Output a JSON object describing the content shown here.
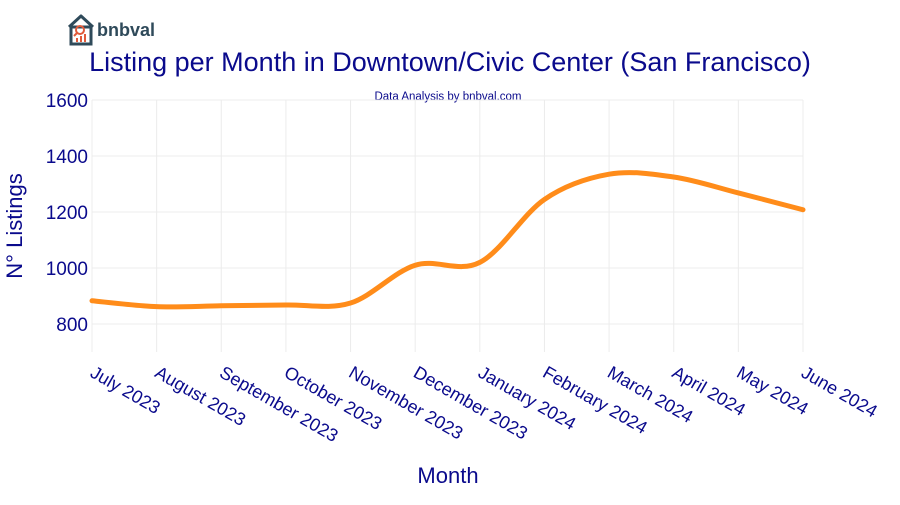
{
  "brand": {
    "name": "bnbval",
    "logo_icon": "house-search-chart-icon",
    "logo_color": "#2f4a5a",
    "accent_color": "#e05a3a"
  },
  "colors": {
    "title": "#0a0a8c",
    "line": "#ff8c1a",
    "grid": "#ececec",
    "background": "#ffffff"
  },
  "chart_data": {
    "type": "line",
    "title": "Listing per Month in Downtown/Civic Center (San Francisco)",
    "subtitle": "Data Analysis by bnbval.com",
    "xlabel": "Month",
    "ylabel": "N° Listings",
    "categories": [
      "July 2023",
      "August 2023",
      "September 2023",
      "October 2023",
      "November 2023",
      "December 2023",
      "January 2024",
      "February 2024",
      "March 2024",
      "April 2024",
      "May 2024",
      "June 2024"
    ],
    "values": [
      883,
      862,
      865,
      868,
      875,
      1010,
      1020,
      1245,
      1335,
      1325,
      1268,
      1208
    ],
    "ylim": [
      700,
      1600
    ],
    "yticks": [
      800,
      1000,
      1200,
      1400,
      1600
    ],
    "grid": true,
    "smooth": true
  }
}
